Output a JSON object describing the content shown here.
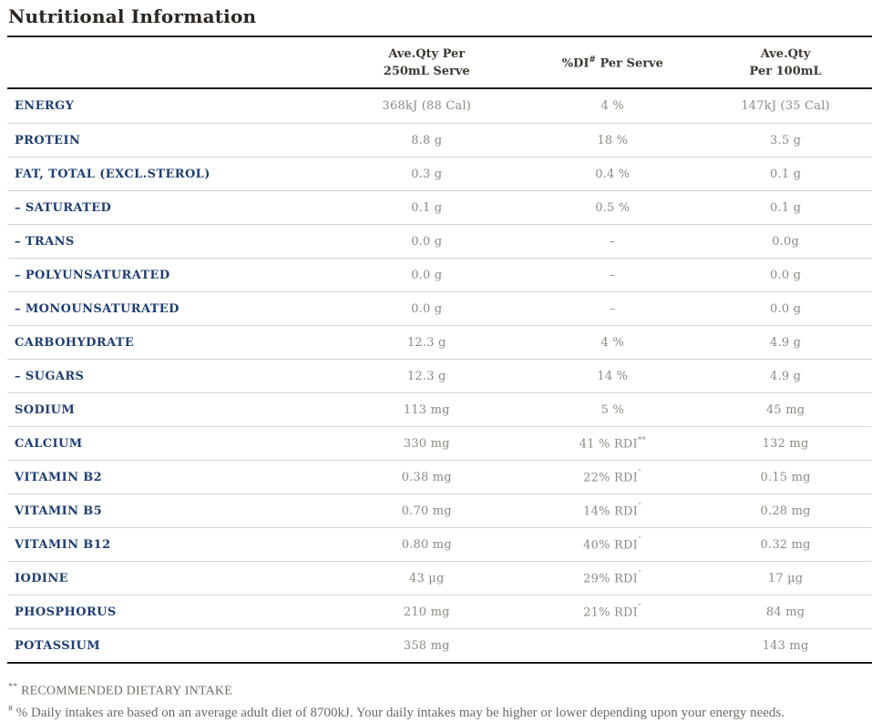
{
  "title": "Nutritional Information",
  "table": {
    "headers": {
      "serve_line1": "Ave.Qty Per",
      "serve_line2": "250mL Serve",
      "di_pre": "%DI",
      "di_sup": "#",
      "di_post": " Per Serve",
      "per100_line1": "Ave.Qty",
      "per100_line2": "Per 100mL"
    },
    "rows": [
      {
        "label": "ENERGY",
        "serve": "368kJ (88 Cal)",
        "di": "4 %",
        "di_sup": "",
        "per100": "147kJ (35 Cal)"
      },
      {
        "label": "PROTEIN",
        "serve": "8.8 g",
        "di": "18 %",
        "di_sup": "",
        "per100": "3.5 g"
      },
      {
        "label": "FAT, TOTAL (EXCL.STEROL)",
        "serve": "0.3 g",
        "di": "0.4 %",
        "di_sup": "",
        "per100": "0.1 g"
      },
      {
        "label": "– SATURATED",
        "serve": "0.1 g",
        "di": "0.5 %",
        "di_sup": "",
        "per100": "0.1 g"
      },
      {
        "label": "– TRANS",
        "serve": "0.0 g",
        "di": "–",
        "di_sup": "",
        "per100": "0.0g"
      },
      {
        "label": "– POLYUNSATURATED",
        "serve": "0.0 g",
        "di": "–",
        "di_sup": "",
        "per100": "0.0 g"
      },
      {
        "label": "– MONOUNSATURATED",
        "serve": "0.0 g",
        "di": "–",
        "di_sup": "",
        "per100": "0.0 g"
      },
      {
        "label": "CARBOHYDRATE",
        "serve": "12.3 g",
        "di": "4 %",
        "di_sup": "",
        "per100": "4.9 g"
      },
      {
        "label": "– SUGARS",
        "serve": "12.3 g",
        "di": "14 %",
        "di_sup": "",
        "per100": "4.9 g"
      },
      {
        "label": "SODIUM",
        "serve": "113 mg",
        "di": "5 %",
        "di_sup": "",
        "per100": "45 mg"
      },
      {
        "label": "CALCIUM",
        "serve": "330 mg",
        "di": "41 % RDI",
        "di_sup": "**",
        "per100": "132 mg"
      },
      {
        "label": "VITAMIN B2",
        "serve": "0.38 mg",
        "di": "22% RDI",
        "di_sup": "ˆ",
        "per100": "0.15 mg"
      },
      {
        "label": "VITAMIN B5",
        "serve": "0.70 mg",
        "di": "14% RDI",
        "di_sup": "ˆ",
        "per100": "0.28 mg"
      },
      {
        "label": "VITAMIN B12",
        "serve": "0.80 mg",
        "di": "40% RDI",
        "di_sup": "ˆ",
        "per100": "0.32 mg"
      },
      {
        "label": "IODINE",
        "serve": "43 µg",
        "di": "29% RDI",
        "di_sup": "ˆ",
        "per100": "17 µg"
      },
      {
        "label": "PHOSPHORUS",
        "serve": "210 mg",
        "di": "21% RDI",
        "di_sup": "ˆ",
        "per100": "84 mg"
      },
      {
        "label": "POTASSIUM",
        "serve": "358 mg",
        "di": "",
        "di_sup": "",
        "per100": "143 mg"
      }
    ]
  },
  "footnotes": {
    "note1_marker": "**",
    "note1_text": " RECOMMENDED DIETARY INTAKE",
    "note2_marker": "#",
    "note2_text": " % Daily intakes are based on an average adult diet of 8700kJ. Your daily intakes may be higher or lower depending upon your energy needs."
  }
}
